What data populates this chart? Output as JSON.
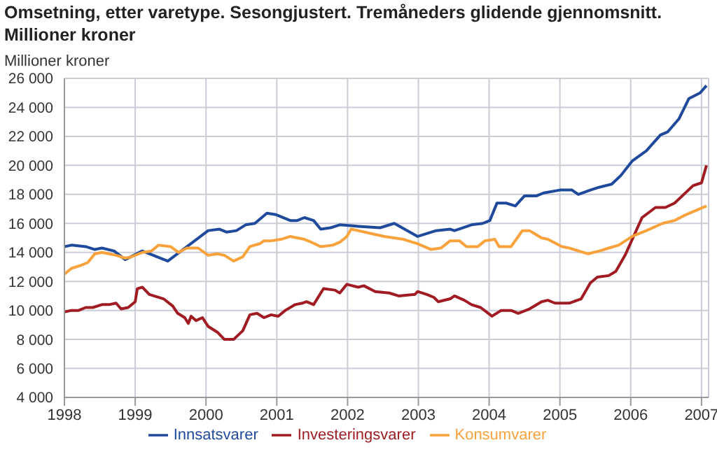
{
  "chart_data": {
    "type": "line",
    "title": "Omsetning, etter varetype. Sesongjustert. Tremåneders glidende gjennomsnitt. Millioner kroner",
    "ylabel": "Millioner kroner",
    "xlim": [
      1998,
      2007.1
    ],
    "xticks": [
      1998,
      1999,
      2000,
      2001,
      2002,
      2003,
      2004,
      2005,
      2006,
      2007
    ],
    "ylim": [
      4000,
      26000
    ],
    "yticks": [
      {
        "value": 4000,
        "label": "4 000"
      },
      {
        "value": 6000,
        "label": "6 000"
      },
      {
        "value": 8000,
        "label": "8 000"
      },
      {
        "value": 10000,
        "label": "10 000"
      },
      {
        "value": 12000,
        "label": "12 000"
      },
      {
        "value": 14000,
        "label": "14 000"
      },
      {
        "value": 16000,
        "label": "16 000"
      },
      {
        "value": 18000,
        "label": "18 000"
      },
      {
        "value": 20000,
        "label": "20 000"
      },
      {
        "value": 22000,
        "label": "22 000"
      },
      {
        "value": 24000,
        "label": "24 000"
      },
      {
        "value": 26000,
        "label": "26 000"
      }
    ],
    "grid": true,
    "legend": "bottom",
    "marker": "none",
    "line_style": "solid",
    "series": [
      {
        "name": "Innsatsvarer",
        "color": "#1f4a9c",
        "x": [
          1998.0,
          1998.1,
          1998.3,
          1998.43,
          1998.53,
          1998.7,
          1998.86,
          1999.1,
          1999.46,
          2000.03,
          2000.19,
          2000.29,
          2000.43,
          2000.56,
          2000.69,
          2000.86,
          2000.99,
          2001.19,
          2001.29,
          2001.39,
          2001.52,
          2001.62,
          2001.76,
          2001.89,
          2002.15,
          2002.46,
          2002.66,
          2002.99,
          2003.25,
          2003.45,
          2003.51,
          2003.75,
          2003.91,
          2004.01,
          2004.11,
          2004.24,
          2004.37,
          2004.5,
          2004.67,
          2004.77,
          2005.0,
          2005.17,
          2005.26,
          2005.43,
          2005.56,
          2005.73,
          2005.86,
          2006.02,
          2006.22,
          2006.42,
          2006.52,
          2006.68,
          2006.82,
          2006.98,
          2007.07
        ],
        "values": [
          14400,
          14500,
          14400,
          14200,
          14300,
          14100,
          13500,
          14100,
          13400,
          15500,
          15600,
          15400,
          15500,
          15900,
          16000,
          16700,
          16600,
          16200,
          16200,
          16400,
          16200,
          15600,
          15700,
          15900,
          15800,
          15700,
          16000,
          15100,
          15500,
          15600,
          15500,
          15900,
          16000,
          16200,
          17400,
          17400,
          17200,
          17900,
          17900,
          18100,
          18300,
          18300,
          18000,
          18300,
          18500,
          18700,
          19300,
          20300,
          21000,
          22100,
          22300,
          23200,
          24600,
          25000,
          25500
        ]
      },
      {
        "name": "Investeringsvarer",
        "color": "#a01c22",
        "x": [
          1998.0,
          1998.1,
          1998.2,
          1998.3,
          1998.4,
          1998.53,
          1998.63,
          1998.73,
          1998.8,
          1998.9,
          1999.0,
          1999.03,
          1999.1,
          1999.2,
          1999.4,
          1999.53,
          1999.6,
          1999.7,
          1999.75,
          1999.79,
          1999.86,
          1999.95,
          2000.03,
          2000.16,
          2000.26,
          2000.39,
          2000.52,
          2000.62,
          2000.72,
          2000.82,
          2000.92,
          2001.02,
          2001.12,
          2001.26,
          2001.36,
          2001.42,
          2001.52,
          2001.66,
          2001.82,
          2001.89,
          2001.99,
          2002.15,
          2002.23,
          2002.39,
          2002.59,
          2002.72,
          2002.95,
          2002.99,
          2003.12,
          2003.22,
          2003.28,
          2003.45,
          2003.51,
          2003.65,
          2003.75,
          2003.88,
          2004.04,
          2004.17,
          2004.31,
          2004.41,
          2004.57,
          2004.74,
          2004.83,
          2004.93,
          2005.13,
          2005.3,
          2005.43,
          2005.53,
          2005.69,
          2005.79,
          2005.92,
          2006.16,
          2006.35,
          2006.49,
          2006.62,
          2006.88,
          2007.0,
          2007.07
        ],
        "values": [
          9900,
          10000,
          10000,
          10200,
          10200,
          10400,
          10400,
          10500,
          10100,
          10200,
          10600,
          11500,
          11600,
          11100,
          10800,
          10300,
          9800,
          9500,
          9100,
          9600,
          9300,
          9500,
          8900,
          8500,
          8000,
          8000,
          8600,
          9700,
          9800,
          9500,
          9700,
          9600,
          10000,
          10400,
          10500,
          10600,
          10400,
          11500,
          11400,
          11200,
          11800,
          11600,
          11700,
          11300,
          11200,
          11000,
          11100,
          11300,
          11100,
          10900,
          10600,
          10800,
          11000,
          10700,
          10400,
          10200,
          9600,
          10000,
          10000,
          9800,
          10100,
          10600,
          10700,
          10500,
          10500,
          10800,
          11900,
          12300,
          12400,
          12700,
          13800,
          16400,
          17100,
          17100,
          17400,
          18600,
          18800,
          20000
        ]
      },
      {
        "name": "Konsumvarer",
        "color": "#f9a23b",
        "x": [
          1998.0,
          1998.1,
          1998.23,
          1998.33,
          1998.43,
          1998.53,
          1998.63,
          1998.73,
          1998.86,
          1998.95,
          1999.1,
          1999.23,
          1999.33,
          1999.5,
          1999.61,
          1999.73,
          1999.89,
          2000.03,
          2000.16,
          2000.26,
          2000.39,
          2000.52,
          2000.62,
          2000.76,
          2000.82,
          2000.92,
          2001.06,
          2001.19,
          2001.39,
          2001.49,
          2001.62,
          2001.79,
          2001.89,
          2001.99,
          2002.05,
          2002.15,
          2002.33,
          2002.52,
          2002.79,
          2002.99,
          2003.18,
          2003.32,
          2003.45,
          2003.58,
          2003.68,
          2003.84,
          2003.94,
          2004.08,
          2004.14,
          2004.31,
          2004.47,
          2004.57,
          2004.74,
          2004.83,
          2005.03,
          2005.13,
          2005.4,
          2005.56,
          2005.69,
          2005.83,
          2006.02,
          2006.22,
          2006.45,
          2006.62,
          2006.78,
          2007.07
        ],
        "values": [
          12500,
          12900,
          13100,
          13300,
          13900,
          14000,
          13900,
          13800,
          13600,
          13700,
          14000,
          14100,
          14500,
          14400,
          14000,
          14300,
          14300,
          13800,
          13900,
          13800,
          13400,
          13700,
          14400,
          14600,
          14800,
          14800,
          14900,
          15100,
          14900,
          14700,
          14400,
          14500,
          14700,
          15100,
          15600,
          15500,
          15300,
          15100,
          14900,
          14600,
          14200,
          14300,
          14800,
          14800,
          14400,
          14400,
          14800,
          14900,
          14400,
          14400,
          15500,
          15500,
          15000,
          14900,
          14400,
          14300,
          13900,
          14100,
          14300,
          14500,
          15100,
          15500,
          16000,
          16200,
          16600,
          17200
        ]
      }
    ]
  }
}
